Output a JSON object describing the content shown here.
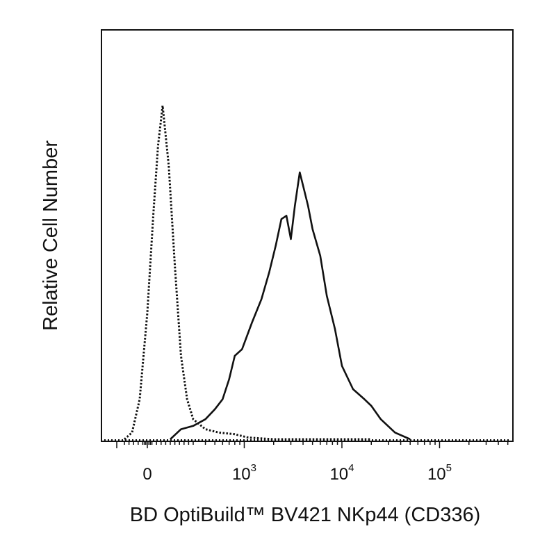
{
  "chart_data": {
    "type": "histogram",
    "xlabel": "BD OptiBuild™ BV421 NKp44 (CD336)",
    "ylabel": "Relative Cell Number",
    "x_scale": "biexponential",
    "grid": false,
    "legend": "none",
    "tick_labels": [
      {
        "value": 0,
        "base": "0",
        "exp": ""
      },
      {
        "value": 1000,
        "base": "10",
        "exp": "3"
      },
      {
        "value": 10000,
        "base": "10",
        "exp": "4"
      },
      {
        "value": 100000,
        "base": "10",
        "exp": "5"
      }
    ],
    "series": [
      {
        "style": "dotted",
        "x": [
          -150,
          -100,
          -50,
          0,
          40,
          70,
          100,
          140,
          180,
          220,
          260,
          300,
          400,
          550,
          800,
          1100,
          2000,
          5000,
          20000
        ],
        "y": [
          0,
          2,
          12,
          38,
          68,
          88,
          100,
          82,
          52,
          25,
          12,
          6,
          3,
          2,
          1.5,
          0.5,
          0,
          0,
          0
        ]
      },
      {
        "style": "solid",
        "x": [
          150,
          220,
          300,
          400,
          500,
          600,
          700,
          800,
          950,
          1200,
          1500,
          1800,
          2100,
          2400,
          2700,
          3000,
          3300,
          3700,
          4000,
          4500,
          5000,
          6000,
          7000,
          8500,
          10000,
          13000,
          17000,
          20000,
          25000,
          35000,
          50000
        ],
        "y": [
          0,
          3,
          4,
          6,
          9,
          12,
          18,
          25,
          27,
          35,
          42,
          50,
          58,
          66,
          67,
          60,
          70,
          80,
          76,
          70,
          63,
          55,
          43,
          33,
          22,
          15,
          12,
          10,
          6,
          2,
          0
        ]
      }
    ]
  }
}
